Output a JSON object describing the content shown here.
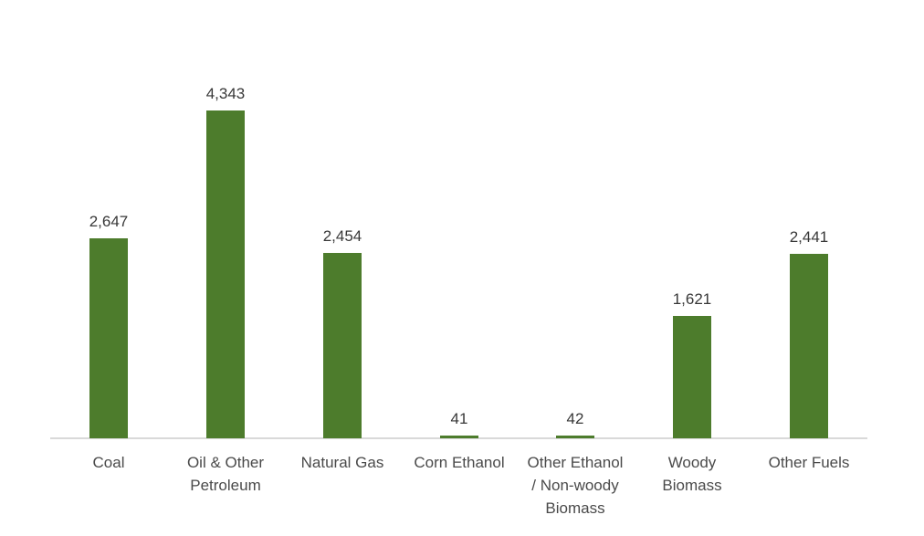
{
  "chart_data": {
    "type": "bar",
    "categories": [
      "Coal",
      "Oil & Other Petroleum",
      "Natural Gas",
      "Corn Ethanol",
      "Other Ethanol / Non-woody Biomass",
      "Woody Biomass",
      "Other Fuels"
    ],
    "category_display_lines": [
      [
        "Coal"
      ],
      [
        "Oil & Other",
        "Petroleum"
      ],
      [
        "Natural Gas"
      ],
      [
        "Corn Ethanol"
      ],
      [
        "Other Ethanol",
        "/ Non-woody",
        "Biomass"
      ],
      [
        "Woody",
        "Biomass"
      ],
      [
        "Other Fuels"
      ]
    ],
    "values": [
      2647,
      4343,
      2454,
      41,
      42,
      1621,
      2441
    ],
    "value_labels": [
      "2,647",
      "4,343",
      "2,454",
      "41",
      "42",
      "1,621",
      "2,441"
    ],
    "title": "",
    "xlabel": "",
    "ylabel": "",
    "ylim": [
      0,
      4343
    ],
    "grid": false,
    "legend": false,
    "colors": {
      "bar": "#4d7c2c",
      "axis_line": "#d9d9d9",
      "value_label_text": "#383838",
      "category_label_text": "#4a4a4a",
      "background": "#ffffff"
    }
  }
}
